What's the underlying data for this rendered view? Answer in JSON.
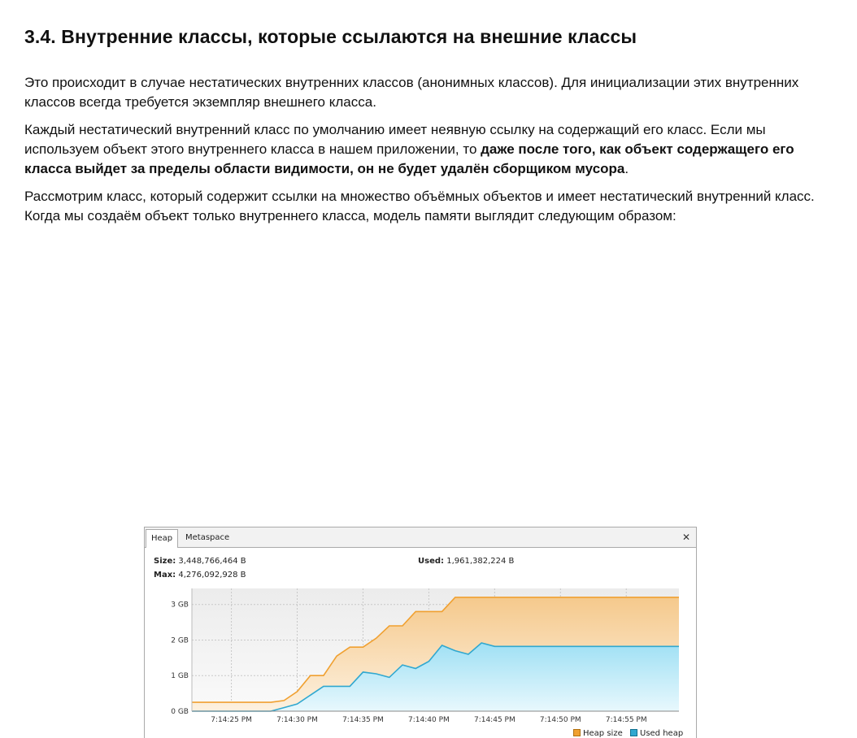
{
  "article": {
    "heading": "3.4. Внутренние классы, которые ссылаются на внешние классы",
    "p1": "Это происходит в случае нестатических внутренних классов (анонимных классов). Для инициализации этих внутренних классов всегда требуется экземпляр внешнего класса.",
    "p2_start": "Каждый нестатический внутренний класс по умолчанию имеет неявную ссылку на содержащий его класс. Если мы используем объект этого внутреннего класса в нашем приложении, то ",
    "p2_bold": "даже после того, как объект содержащего его класса выйдет за пределы области видимости, он не будет удалён сборщиком мусора",
    "p2_end": ".",
    "p3": "Рассмотрим класс, который содержит ссылки на множество объёмных объектов и имеет нестатический внутренний класс. Когда мы создаём объект только внутреннего класса, модель памяти выглядит следующим образом:"
  },
  "panel": {
    "tabs": [
      "Heap",
      "Metaspace"
    ],
    "active_tab": "Heap",
    "close_icon": "close-icon",
    "size_label": "Size:",
    "size_value": "3,448,766,464 B",
    "max_label": "Max:",
    "max_value": "4,276,092,928 B",
    "used_label": "Used:",
    "used_value": "1,961,382,224 B",
    "colors": {
      "heap_size": "#f0a030",
      "used_heap": "#30a8d0"
    }
  },
  "chart_data": {
    "type": "area",
    "x": [
      "7:14:22 PM",
      "7:14:23 PM",
      "7:14:24 PM",
      "7:14:25 PM",
      "7:14:26 PM",
      "7:14:27 PM",
      "7:14:28 PM",
      "7:14:29 PM",
      "7:14:30 PM",
      "7:14:31 PM",
      "7:14:32 PM",
      "7:14:33 PM",
      "7:14:34 PM",
      "7:14:35 PM",
      "7:14:36 PM",
      "7:14:37 PM",
      "7:14:38 PM",
      "7:14:39 PM",
      "7:14:40 PM",
      "7:14:41 PM",
      "7:14:42 PM",
      "7:14:43 PM",
      "7:14:44 PM",
      "7:14:45 PM",
      "7:14:46 PM",
      "7:14:47 PM",
      "7:14:48 PM",
      "7:14:49 PM",
      "7:14:50 PM",
      "7:14:51 PM",
      "7:14:52 PM",
      "7:14:53 PM",
      "7:14:54 PM",
      "7:14:55 PM",
      "7:14:56 PM",
      "7:14:57 PM",
      "7:14:58 PM",
      "7:14:59 PM"
    ],
    "series": [
      {
        "name": "Heap size",
        "values": [
          0.25,
          0.25,
          0.25,
          0.25,
          0.25,
          0.25,
          0.25,
          0.3,
          0.55,
          1.0,
          1.0,
          1.55,
          1.8,
          1.8,
          2.05,
          2.4,
          2.4,
          2.8,
          2.8,
          2.8,
          3.2,
          3.2,
          3.2,
          3.2,
          3.2,
          3.2,
          3.2,
          3.2,
          3.2,
          3.2,
          3.2,
          3.2,
          3.2,
          3.2,
          3.2,
          3.2,
          3.2,
          3.2
        ]
      },
      {
        "name": "Used heap",
        "values": [
          0.0,
          0.0,
          0.0,
          0.0,
          0.0,
          0.0,
          0.0,
          0.1,
          0.2,
          0.45,
          0.7,
          0.7,
          0.7,
          1.1,
          1.05,
          0.95,
          1.3,
          1.2,
          1.4,
          1.85,
          1.7,
          1.6,
          1.92,
          1.82,
          1.82,
          1.82,
          1.82,
          1.82,
          1.82,
          1.82,
          1.82,
          1.82,
          1.82,
          1.82,
          1.82,
          1.82,
          1.82,
          1.82
        ]
      }
    ],
    "tick_labels_x": [
      "7:14:25 PM",
      "7:14:30 PM",
      "7:14:35 PM",
      "7:14:40 PM",
      "7:14:45 PM",
      "7:14:50 PM",
      "7:14:55 PM"
    ],
    "tick_labels_y": [
      "0 GB",
      "1 GB",
      "2 GB",
      "3 GB"
    ],
    "ylim": [
      0,
      3.45
    ],
    "grid": true,
    "legend": "bottom-right",
    "title": "",
    "xlabel": "",
    "ylabel": ""
  }
}
